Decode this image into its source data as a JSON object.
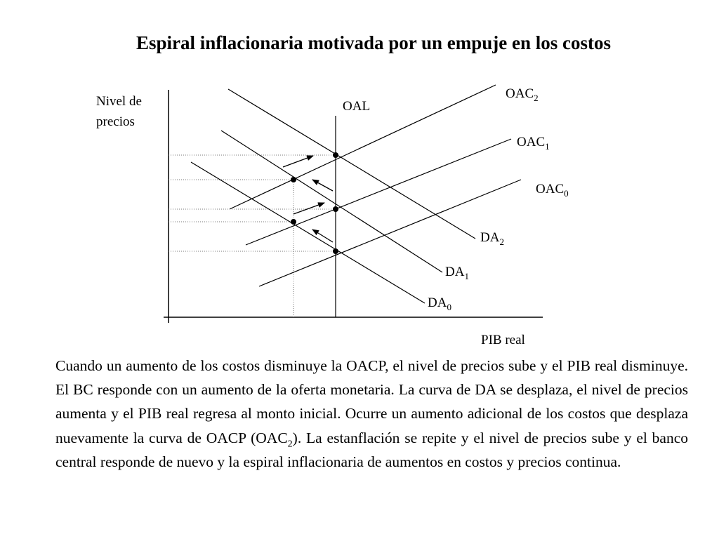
{
  "title": "Espiral inflacionaria motivada por un empuje en los costos",
  "axes": {
    "y_label_line1": "Nivel de",
    "y_label_line2": "precios",
    "x_label": "PIB real"
  },
  "curves": {
    "oal": "OAL",
    "oac2": {
      "base": "OAC",
      "sub": "2"
    },
    "oac1": {
      "base": "OAC",
      "sub": "1"
    },
    "oac0": {
      "base": "OAC",
      "sub": "0"
    },
    "da2": {
      "base": "DA",
      "sub": "2"
    },
    "da1": {
      "base": "DA",
      "sub": "1"
    },
    "da0": {
      "base": "DA",
      "sub": "0"
    }
  },
  "paragraph": {
    "part1": "Cuando un aumento de los costos disminuye la OACP, el nivel de precios sube y el PIB real disminuye. El BC responde con un aumento de la oferta monetaria. La curva de DA se desplaza, el nivel de precios aumenta y el PIB real regresa al monto inicial. Ocurre un aumento adicional de los costos que desplaza nuevamente la curva de OACP (OAC",
    "sub": "2",
    "part2": "). La estanflación se repite y el nivel de precios sube y el banco central responde de nuevo y la espiral inflacionaria de aumentos en costos y precios continua."
  }
}
